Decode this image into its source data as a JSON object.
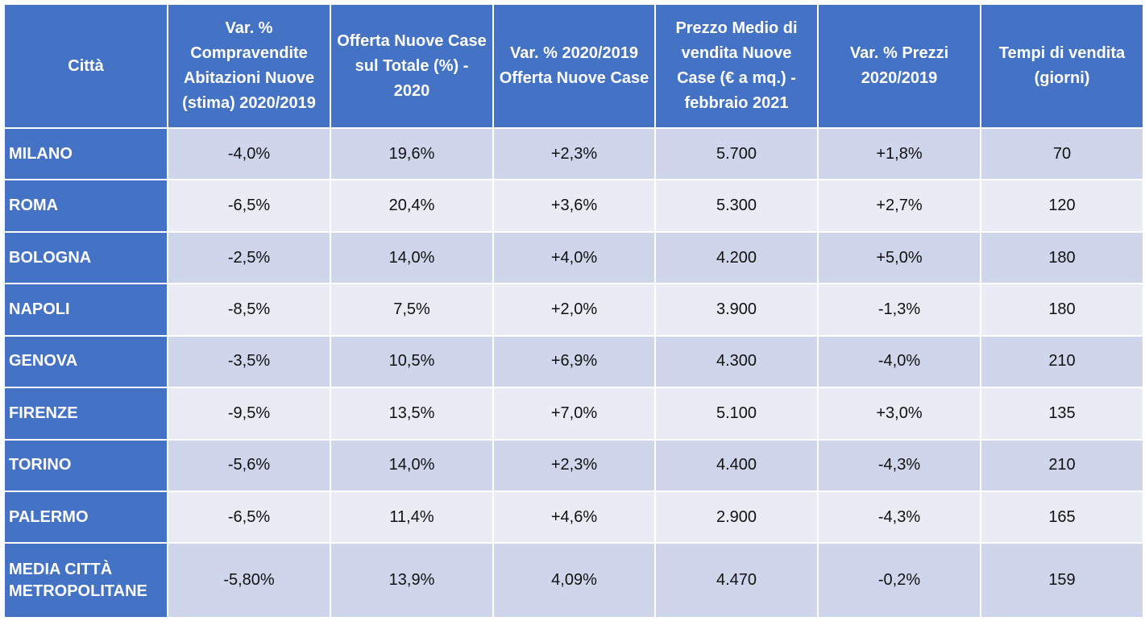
{
  "header": {
    "col_city": "Città",
    "col_sales_var": "Var. % Compravendite Abitazioni Nuove (stima) 2020/2019",
    "col_offer_share": "Offerta Nuove Case sul Totale (%) - 2020",
    "col_offer_var": "Var. % 2020/2019 Offerta Nuove Case",
    "col_avg_price": "Prezzo Medio di vendita Nuove Case (€ a mq.) - febbraio 2021",
    "col_price_var": "Var. % Prezzi 2020/2019",
    "col_sale_time": "Tempi di vendita (giorni)"
  },
  "rows": [
    {
      "city": "MILANO",
      "sales_var": "-4,0%",
      "offer_share": "19,6%",
      "offer_var": "+2,3%",
      "avg_price": "5.700",
      "price_var": "+1,8%",
      "sale_time": "70"
    },
    {
      "city": "ROMA",
      "sales_var": "-6,5%",
      "offer_share": "20,4%",
      "offer_var": "+3,6%",
      "avg_price": "5.300",
      "price_var": "+2,7%",
      "sale_time": "120"
    },
    {
      "city": "BOLOGNA",
      "sales_var": "-2,5%",
      "offer_share": "14,0%",
      "offer_var": "+4,0%",
      "avg_price": "4.200",
      "price_var": "+5,0%",
      "sale_time": "180"
    },
    {
      "city": "NAPOLI",
      "sales_var": "-8,5%",
      "offer_share": "7,5%",
      "offer_var": "+2,0%",
      "avg_price": "3.900",
      "price_var": "-1,3%",
      "sale_time": "180"
    },
    {
      "city": "GENOVA",
      "sales_var": "-3,5%",
      "offer_share": "10,5%",
      "offer_var": "+6,9%",
      "avg_price": "4.300",
      "price_var": "-4,0%",
      "sale_time": "210"
    },
    {
      "city": "FIRENZE",
      "sales_var": "-9,5%",
      "offer_share": "13,5%",
      "offer_var": "+7,0%",
      "avg_price": "5.100",
      "price_var": "+3,0%",
      "sale_time": "135"
    },
    {
      "city": "TORINO",
      "sales_var": "-5,6%",
      "offer_share": "14,0%",
      "offer_var": "+2,3%",
      "avg_price": "4.400",
      "price_var": "-4,3%",
      "sale_time": "210"
    },
    {
      "city": "PALERMO",
      "sales_var": "-6,5%",
      "offer_share": "11,4%",
      "offer_var": "+4,6%",
      "avg_price": "2.900",
      "price_var": "-4,3%",
      "sale_time": "165"
    },
    {
      "city": "MEDIA CITTÀ METROPOLITANE",
      "sales_var": "-5,80%",
      "offer_share": "13,9%",
      "offer_var": "4,09%",
      "avg_price": "4.470",
      "price_var": "-0,2%",
      "sale_time": "159"
    }
  ],
  "colors": {
    "header_bg": "#4472c4",
    "row_odd_bg": "#cfd5ea",
    "row_even_bg": "#e9ebf5",
    "header_text": "#ffffff"
  }
}
